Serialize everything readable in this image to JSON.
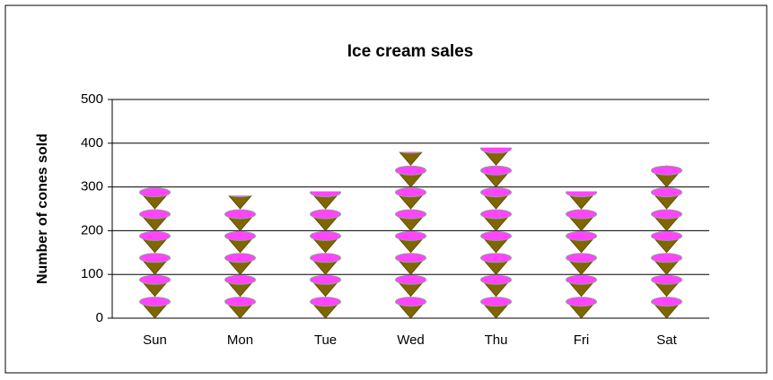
{
  "chart_data": {
    "type": "pictograph",
    "title": "Ice cream sales",
    "y_label": "Number of cones sold",
    "categories": [
      "Sun",
      "Mon",
      "Tue",
      "Wed",
      "Thu",
      "Fri",
      "Sat"
    ],
    "values": [
      300,
      280,
      290,
      380,
      390,
      290,
      350
    ],
    "ylim": [
      0,
      500
    ],
    "yticks": [
      0,
      100,
      200,
      300,
      400,
      500
    ],
    "grid": true,
    "scoop_color": "#ff44ff",
    "cone_color": "#806600"
  }
}
